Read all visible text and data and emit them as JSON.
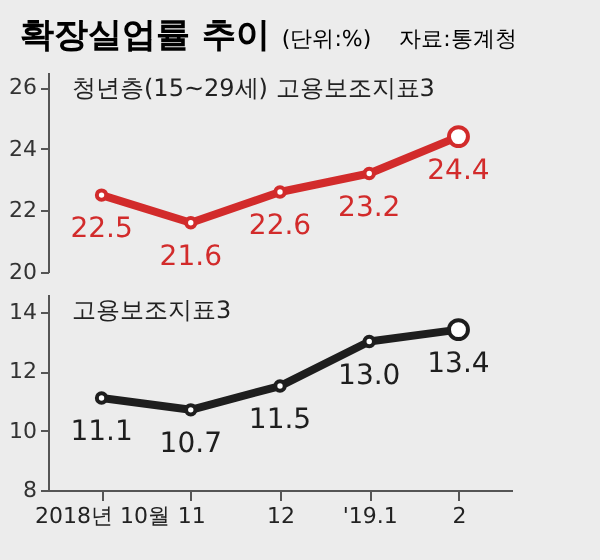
{
  "chart_data": [
    {
      "type": "line",
      "title": "확장실업률 추이",
      "annotations": [
        "(단위:%)",
        "자료:통계청"
      ],
      "categories": [
        null,
        null,
        null,
        null,
        null
      ],
      "series": [
        {
          "name": "청년층(15~29세) 고용보조지표3",
          "color": "#d22b2b",
          "values": [
            22.5,
            21.6,
            22.6,
            23.2,
            24.4
          ]
        }
      ],
      "ylim": [
        20,
        26.5
      ],
      "yticks": [
        20,
        22,
        24,
        26
      ],
      "tick_labels": "y",
      "data_labels": true,
      "marker": "circle",
      "line_style": "solid"
    },
    {
      "type": "line",
      "categories": [
        "2018년 10월",
        "11",
        "12",
        "'19.1",
        "2"
      ],
      "series": [
        {
          "name": "고용보조지표3",
          "color": "#1e1e1e",
          "values": [
            11.1,
            10.7,
            11.5,
            13.0,
            13.4
          ]
        }
      ],
      "ylim": [
        8,
        14.6
      ],
      "yticks": [
        8,
        10,
        12,
        14
      ],
      "value_labels": [
        "11.1",
        "10.7",
        "11.5",
        "13.0",
        "13.4"
      ],
      "marker": "circle",
      "line_style": "solid"
    }
  ]
}
